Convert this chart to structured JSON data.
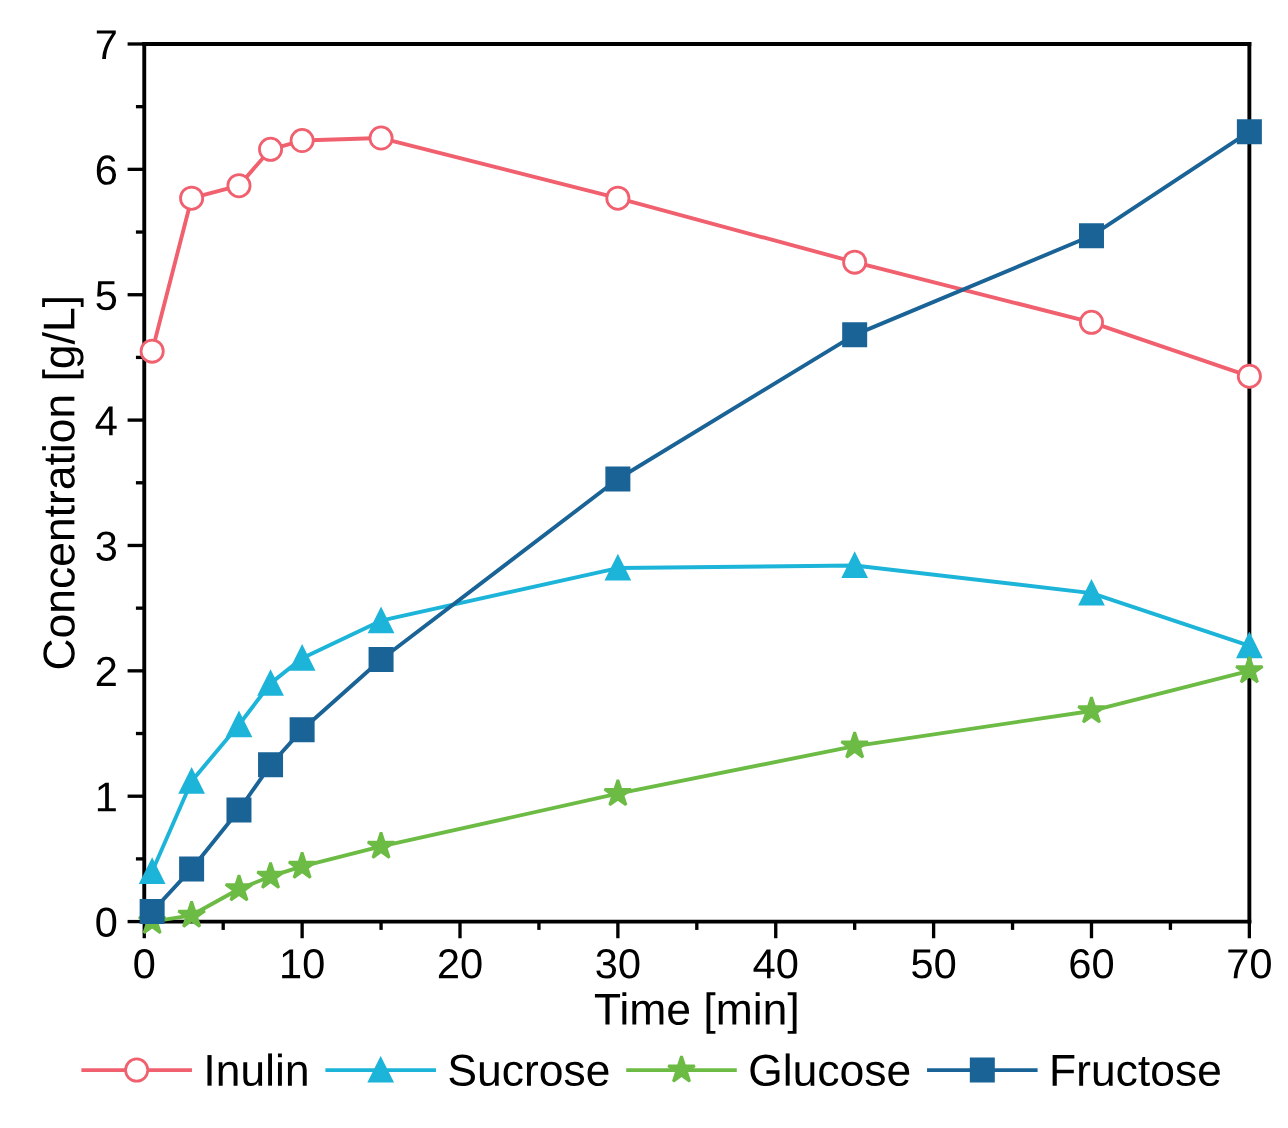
{
  "chart_data": {
    "type": "line",
    "xlabel": "Time [min]",
    "ylabel": "Concentration [g/L]",
    "x": [
      0.5,
      3,
      6,
      8,
      10,
      15,
      30,
      45,
      60,
      70
    ],
    "series": [
      {
        "name": "Inulin",
        "color": "#f0606e",
        "marker": "circle",
        "values": [
          4.55,
          5.77,
          5.87,
          6.16,
          6.23,
          6.25,
          5.77,
          5.26,
          4.78,
          4.35
        ]
      },
      {
        "name": "Sucrose",
        "color": "#1cb4d8",
        "marker": "triangle",
        "values": [
          0.4,
          1.12,
          1.57,
          1.9,
          2.1,
          2.4,
          2.82,
          2.84,
          2.62,
          2.2
        ]
      },
      {
        "name": "Glucose",
        "color": "#6cbb45",
        "marker": "star",
        "values": [
          0.0,
          0.05,
          0.26,
          0.36,
          0.44,
          0.6,
          1.02,
          1.4,
          1.68,
          2.0
        ]
      },
      {
        "name": "Fructose",
        "color": "#1a6396",
        "marker": "square",
        "values": [
          0.08,
          0.42,
          0.89,
          1.25,
          1.53,
          2.09,
          3.53,
          4.68,
          5.47,
          6.3
        ]
      }
    ],
    "xlim": [
      0,
      70
    ],
    "xticks": [
      0,
      10,
      20,
      30,
      40,
      50,
      60,
      70
    ],
    "ylim": [
      0,
      7
    ],
    "yticks": [
      0,
      1,
      2,
      3,
      4,
      5,
      6,
      7
    ],
    "grid": false,
    "legend": "bottom",
    "line_style": "solid"
  }
}
